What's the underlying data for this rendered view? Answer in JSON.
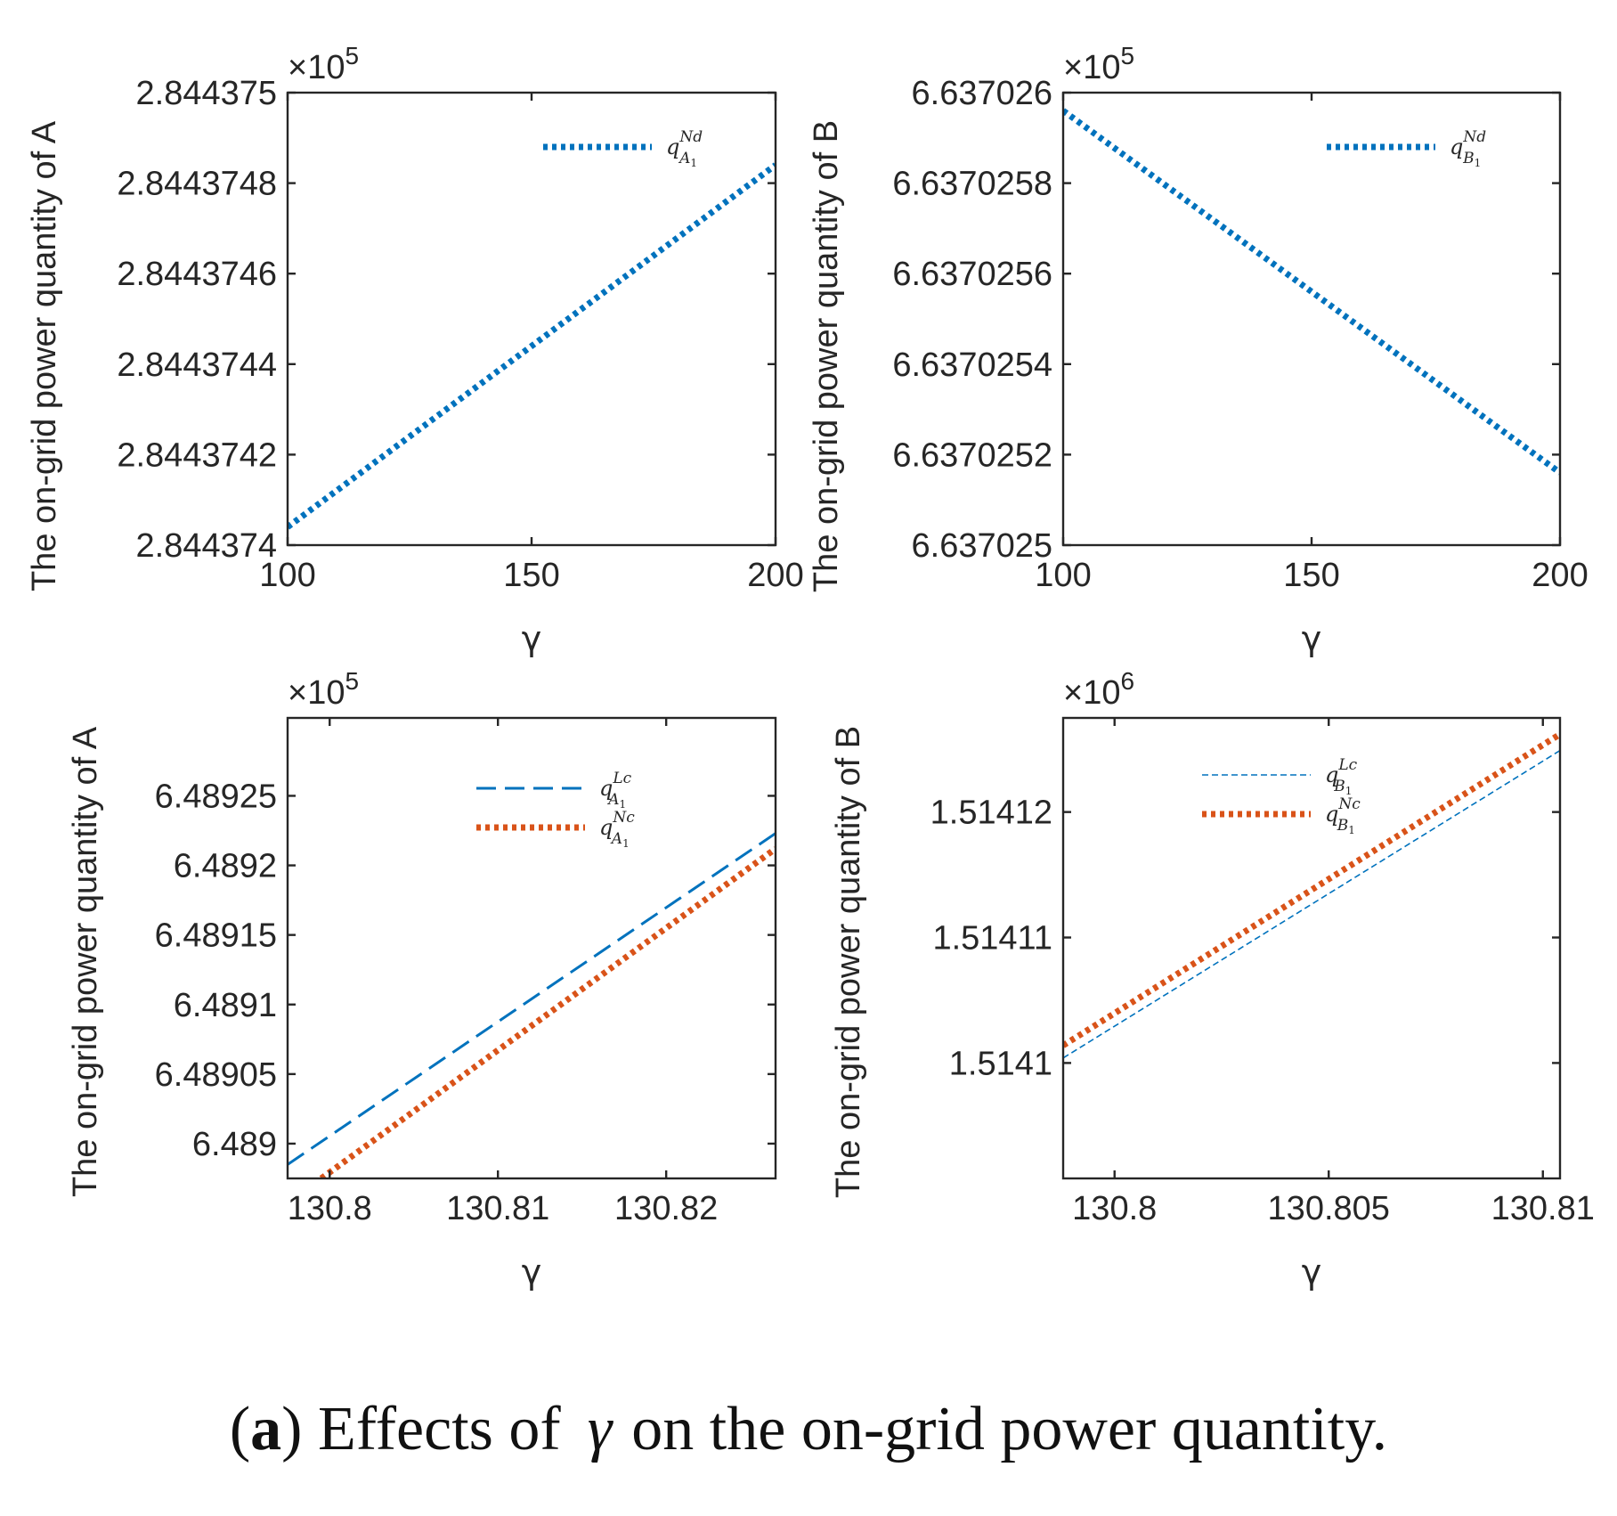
{
  "caption": {
    "panel_letter": "a",
    "prefix": "Effects of",
    "symbol": "γ",
    "suffix": "on the on-grid power quantity."
  },
  "colors": {
    "blue": "#0072BD",
    "orange": "#D95319",
    "axis": "#262626"
  },
  "chart_data": [
    {
      "type": "line",
      "title": "",
      "xlabel": "γ",
      "ylabel": "The on-grid power quantity of A",
      "exponent_label": "×10",
      "exponent_power": "5",
      "xlim": [
        100,
        200
      ],
      "ylim": [
        2.844374,
        2.844375
      ],
      "xticks": [
        100,
        150,
        200
      ],
      "xtick_labels": [
        "100",
        "150",
        "200"
      ],
      "yticks": [
        2.844374,
        2.8443742,
        2.8443744,
        2.8443746,
        2.8443748,
        2.844375
      ],
      "ytick_labels": [
        "2.844374",
        "2.8443742",
        "2.8443744",
        "2.8443746",
        "2.8443748",
        "2.844375"
      ],
      "legend_position": "top-right",
      "series": [
        {
          "name": "q",
          "sup": "Nd",
          "sub": "A",
          "sub2": "1",
          "style": "dotted",
          "color": "blue",
          "x": [
            100,
            200
          ],
          "values": [
            2.84437404,
            2.84437484
          ]
        }
      ]
    },
    {
      "type": "line",
      "title": "",
      "xlabel": "γ",
      "ylabel": "The on-grid power quantity of B",
      "exponent_label": "×10",
      "exponent_power": "5",
      "xlim": [
        100,
        200
      ],
      "ylim": [
        6.637025,
        6.637026
      ],
      "xticks": [
        100,
        150,
        200
      ],
      "xtick_labels": [
        "100",
        "150",
        "200"
      ],
      "yticks": [
        6.637025,
        6.6370252,
        6.6370254,
        6.6370256,
        6.6370258,
        6.637026
      ],
      "ytick_labels": [
        "6.637025",
        "6.6370252",
        "6.6370254",
        "6.6370256",
        "6.6370258",
        "6.637026"
      ],
      "legend_position": "top-right",
      "series": [
        {
          "name": "q",
          "sup": "Nd",
          "sub": "B",
          "sub2": "1",
          "style": "dotted",
          "color": "blue",
          "x": [
            100,
            200
          ],
          "values": [
            6.63702596,
            6.63702516
          ]
        }
      ]
    },
    {
      "type": "line",
      "title": "",
      "xlabel": "γ",
      "ylabel": "The on-grid power quantity of A",
      "exponent_label": "×10",
      "exponent_power": "5",
      "xlim": [
        130.7975,
        130.8265
      ],
      "ylim": [
        6.488975,
        6.489306
      ],
      "xticks": [
        130.8,
        130.81,
        130.82
      ],
      "xtick_labels": [
        "130.8",
        "130.81",
        "130.82"
      ],
      "yticks": [
        6.489,
        6.48905,
        6.4891,
        6.48915,
        6.4892,
        6.48925
      ],
      "ytick_labels": [
        "6.489",
        "6.48905",
        "6.4891",
        "6.48915",
        "6.4892",
        "6.48925"
      ],
      "legend_position": "top-right",
      "series": [
        {
          "name": "q",
          "sup": "Lc",
          "sub": "A",
          "sub2": "1",
          "style": "dashed",
          "color": "blue",
          "x": [
            130.7975,
            130.8265
          ],
          "values": [
            6.488985,
            6.489223
          ]
        },
        {
          "name": "q",
          "sup": "Nc",
          "sub": "A",
          "sub2": "1",
          "style": "dotted",
          "color": "orange",
          "x": [
            130.7995,
            130.8265
          ],
          "values": [
            6.488975,
            6.489212
          ]
        }
      ]
    },
    {
      "type": "line",
      "title": "",
      "xlabel": "γ",
      "ylabel": "The on-grid power quantity of B",
      "exponent_label": "×10",
      "exponent_power": "6",
      "xlim": [
        130.7988,
        130.8104
      ],
      "ylim": [
        1.5140908,
        1.5141275
      ],
      "xticks": [
        130.8,
        130.805,
        130.81
      ],
      "xtick_labels": [
        "130.8",
        "130.805",
        "130.81"
      ],
      "yticks": [
        1.5141,
        1.51411,
        1.51412
      ],
      "ytick_labels": [
        "1.5141",
        "1.51411",
        "1.51412"
      ],
      "legend_position": "top-right",
      "series": [
        {
          "name": "q",
          "sup": "Lc",
          "sub": "B",
          "sub2": "1",
          "style": "thin-dashed",
          "color": "blue",
          "x": [
            130.7988,
            130.8104
          ],
          "values": [
            1.5141004,
            1.5141249
          ]
        },
        {
          "name": "q",
          "sup": "Nc",
          "sub": "B",
          "sub2": "1",
          "style": "dotted",
          "color": "orange",
          "x": [
            130.7988,
            130.8104
          ],
          "values": [
            1.5141014,
            1.5141262
          ]
        }
      ]
    }
  ]
}
